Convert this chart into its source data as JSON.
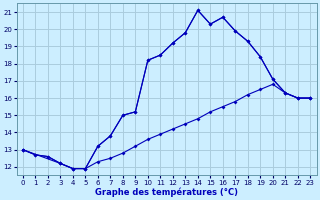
{
  "xlabel": "Graphe des températures (°C)",
  "background_color": "#cceeff",
  "grid_color": "#aaccdd",
  "line_color": "#0000bb",
  "xlim": [
    -0.5,
    23.5
  ],
  "ylim": [
    11.5,
    21.5
  ],
  "yticks": [
    12,
    13,
    14,
    15,
    16,
    17,
    18,
    19,
    20,
    21
  ],
  "xticks": [
    0,
    1,
    2,
    3,
    4,
    5,
    6,
    7,
    8,
    9,
    10,
    11,
    12,
    13,
    14,
    15,
    16,
    17,
    18,
    19,
    20,
    21,
    22,
    23
  ],
  "line_top_x": [
    0,
    1,
    2,
    3,
    4,
    5,
    6,
    7,
    8,
    9,
    10,
    11,
    12,
    13,
    14,
    15,
    16,
    17,
    18,
    19,
    20,
    21,
    22,
    23
  ],
  "line_top_y": [
    13.0,
    12.7,
    12.6,
    12.2,
    11.9,
    11.9,
    13.2,
    13.8,
    15.0,
    15.2,
    18.2,
    18.5,
    19.2,
    19.8,
    21.1,
    20.3,
    20.7,
    19.9,
    19.3,
    18.4,
    17.1,
    16.3,
    16.0,
    16.0
  ],
  "line_bot_x": [
    0,
    1,
    2,
    3,
    4,
    5,
    6,
    7,
    8,
    9,
    10,
    11,
    12,
    13,
    14,
    15,
    16,
    17,
    18,
    19,
    20,
    21,
    22,
    23
  ],
  "line_bot_y": [
    13.0,
    12.7,
    12.6,
    12.2,
    11.9,
    11.9,
    12.3,
    12.5,
    12.8,
    13.2,
    13.6,
    13.9,
    14.2,
    14.5,
    14.8,
    15.2,
    15.5,
    15.8,
    16.2,
    16.5,
    16.8,
    16.3,
    16.0,
    16.0
  ],
  "line_mid_x": [
    0,
    3,
    4,
    5,
    6,
    7,
    8,
    9,
    10,
    11,
    12,
    13,
    14,
    15,
    16,
    17,
    18,
    19,
    20,
    21,
    22,
    23
  ],
  "line_mid_y": [
    13.0,
    12.2,
    11.9,
    11.9,
    13.2,
    13.8,
    15.0,
    15.2,
    18.2,
    18.5,
    19.2,
    19.8,
    21.1,
    20.3,
    20.7,
    19.9,
    19.3,
    18.4,
    17.1,
    16.3,
    16.0,
    16.0
  ]
}
